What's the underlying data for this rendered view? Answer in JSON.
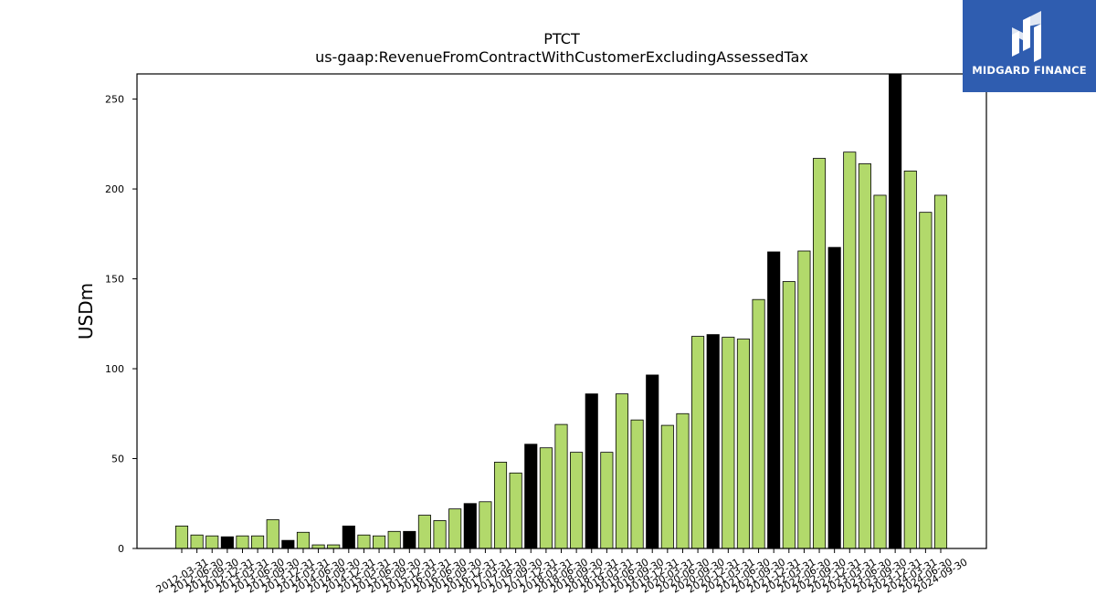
{
  "logo": {
    "text": "MIDGARD FINANCE",
    "color": "#2f5db0"
  },
  "chart_data": {
    "type": "bar",
    "title": "PTCT",
    "subtitle": "us-gaap:RevenueFromContractWithCustomerExcludingAssessedTax",
    "ylabel": "USDm",
    "xlabel": "",
    "ylim": [
      0,
      264
    ],
    "yticks": [
      0,
      50,
      100,
      150,
      200,
      250
    ],
    "grid": false,
    "colors": {
      "quarter": "#b2d96b",
      "annual": "#000000",
      "edge": "#000000"
    },
    "categories": [
      "2012-03-31",
      "2012-06-30",
      "2012-09-30",
      "2012-12-31",
      "2013-03-31",
      "2013-06-30",
      "2013-09-30",
      "2013-12-31",
      "2014-03-31",
      "2014-06-30",
      "2014-09-30",
      "2014-12-31",
      "2015-03-31",
      "2015-06-30",
      "2015-09-30",
      "2015-12-31",
      "2016-03-31",
      "2016-06-30",
      "2016-09-30",
      "2016-12-31",
      "2017-03-31",
      "2017-06-30",
      "2017-09-30",
      "2017-12-31",
      "2018-03-31",
      "2018-06-30",
      "2018-09-30",
      "2018-12-31",
      "2019-03-31",
      "2019-06-30",
      "2019-09-30",
      "2019-12-31",
      "2020-03-31",
      "2020-06-30",
      "2020-09-30",
      "2020-12-31",
      "2021-03-31",
      "2021-06-30",
      "2021-09-30",
      "2021-12-31",
      "2022-03-31",
      "2022-06-30",
      "2022-09-30",
      "2022-12-31",
      "2023-03-31",
      "2023-06-30",
      "2023-09-30",
      "2023-12-31",
      "2024-03-31",
      "2024-06-30",
      "2024-09-30"
    ],
    "values": [
      12.5,
      7.5,
      7,
      6.5,
      7,
      7,
      16,
      4.5,
      9,
      2,
      2,
      12.5,
      7.5,
      7,
      9.5,
      9.5,
      18.5,
      15.5,
      22,
      25,
      26,
      48,
      42,
      58,
      56,
      69,
      53.5,
      86,
      53.5,
      86,
      71.5,
      96.5,
      68.5,
      75,
      118,
      119,
      117.5,
      116.5,
      138.5,
      165,
      148.5,
      165.5,
      217,
      167.5,
      220.5,
      214,
      196.5,
      264,
      210,
      187,
      196.5
    ],
    "annual_flags": [
      false,
      false,
      false,
      true,
      false,
      false,
      false,
      true,
      false,
      false,
      false,
      true,
      false,
      false,
      false,
      true,
      false,
      false,
      false,
      true,
      false,
      false,
      false,
      true,
      false,
      false,
      false,
      true,
      false,
      false,
      false,
      true,
      false,
      false,
      false,
      true,
      false,
      false,
      false,
      true,
      false,
      false,
      false,
      true,
      false,
      false,
      false,
      true,
      false,
      false,
      false
    ]
  }
}
